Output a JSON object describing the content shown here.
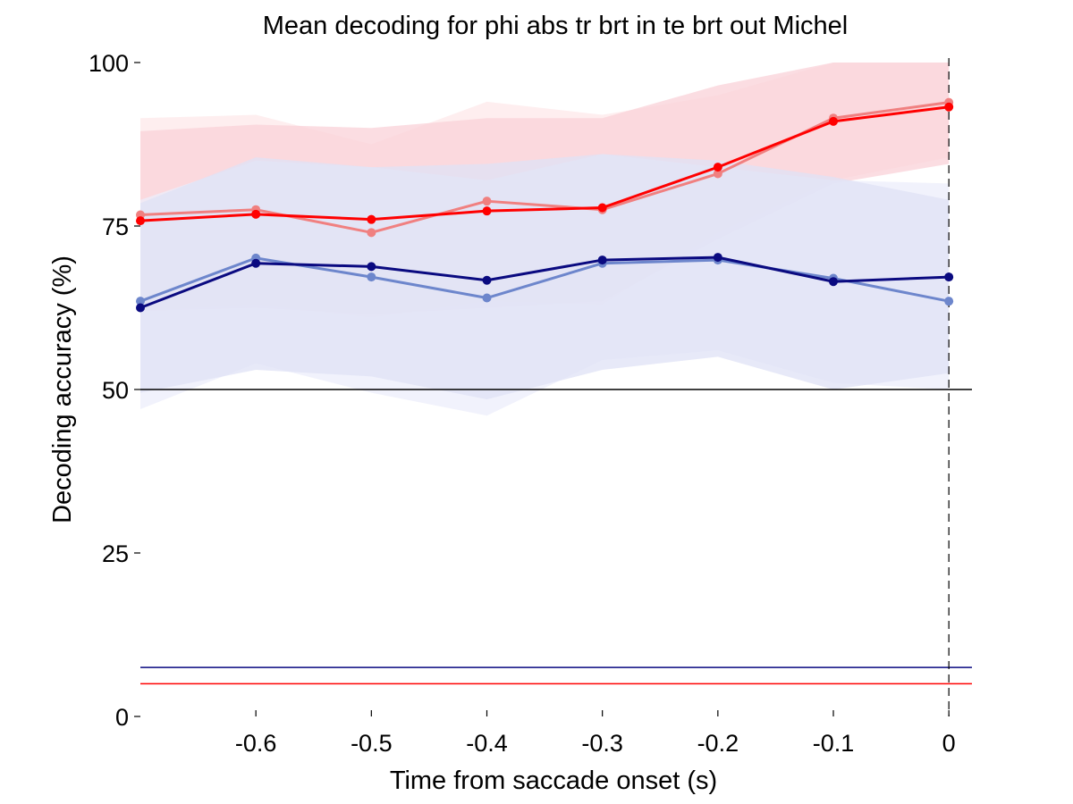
{
  "chart_data": {
    "type": "line",
    "title": "Mean decoding for phi abs tr brt in te brt out  Michel",
    "xlabel": "Time from saccade onset (s)",
    "ylabel": "Decoding accuracy (%)",
    "xlim": [
      -0.7,
      0.02
    ],
    "ylim": [
      0,
      100
    ],
    "x_ticks": [
      -0.6,
      -0.5,
      -0.4,
      -0.3,
      -0.2,
      -0.1,
      0
    ],
    "x_tick_labels": [
      "-0.6",
      "-0.5",
      "-0.4",
      "-0.3",
      "-0.2",
      "-0.1",
      "0"
    ],
    "y_ticks": [
      0,
      25,
      50,
      75,
      100
    ],
    "y_tick_labels": [
      "0",
      "25",
      "50",
      "75",
      "100"
    ],
    "x": [
      -0.7,
      -0.6,
      -0.5,
      -0.4,
      -0.3,
      -0.2,
      -0.1,
      0
    ],
    "series": [
      {
        "color": "#f08080",
        "values": [
          76.7,
          77.5,
          74.0,
          78.8,
          77.5,
          83.0,
          91.5,
          93.9
        ],
        "band_lower": [
          62.0,
          63.0,
          61.0,
          63.5,
          63.0,
          74.0,
          82.0,
          85.5
        ],
        "band_upper": [
          91.5,
          92.0,
          87.5,
          94.0,
          92.0,
          95.0,
          100,
          100
        ],
        "band_color": "#fde8ea"
      },
      {
        "color": "#ff0000",
        "values": [
          75.8,
          76.8,
          76.0,
          77.3,
          77.8,
          84.0,
          91.0,
          93.2
        ],
        "band_lower": [
          62.0,
          62.5,
          61.5,
          62.5,
          63.5,
          73.0,
          81.5,
          84.5
        ],
        "band_upper": [
          89.5,
          90.5,
          90.0,
          91.5,
          91.5,
          96.5,
          100,
          100
        ],
        "band_color": "#f9d2d8"
      },
      {
        "color": "#6d86cc",
        "values": [
          63.5,
          70.1,
          67.2,
          64.0,
          69.3,
          69.8,
          67.0,
          63.5
        ],
        "band_lower": [
          47.0,
          54.0,
          49.5,
          46.0,
          54.5,
          56.0,
          51.0,
          50.0
        ],
        "band_upper": [
          79.0,
          85.0,
          84.0,
          82.0,
          86.0,
          84.0,
          82.0,
          81.5
        ],
        "band_color": "#eceefb"
      },
      {
        "color": "#0a0a80",
        "values": [
          62.5,
          69.3,
          68.8,
          66.7,
          69.8,
          70.2,
          66.5,
          67.2
        ],
        "band_lower": [
          49.5,
          53.0,
          52.0,
          48.5,
          53.0,
          55.0,
          50.0,
          52.5
        ],
        "band_upper": [
          78.5,
          85.5,
          84.0,
          84.5,
          86.0,
          85.0,
          82.5,
          79.0
        ],
        "band_color": "#dfe1f5"
      }
    ],
    "reference_lines": [
      {
        "y": 50,
        "color": "#000000"
      },
      {
        "y": 7.5,
        "color": "#0a0a80"
      },
      {
        "y": 5.0,
        "color": "#ff0000"
      }
    ],
    "vertical_lines": [
      {
        "x": 0,
        "color": "#000000",
        "style": "dashed"
      }
    ],
    "grid": false,
    "legend": "none"
  }
}
